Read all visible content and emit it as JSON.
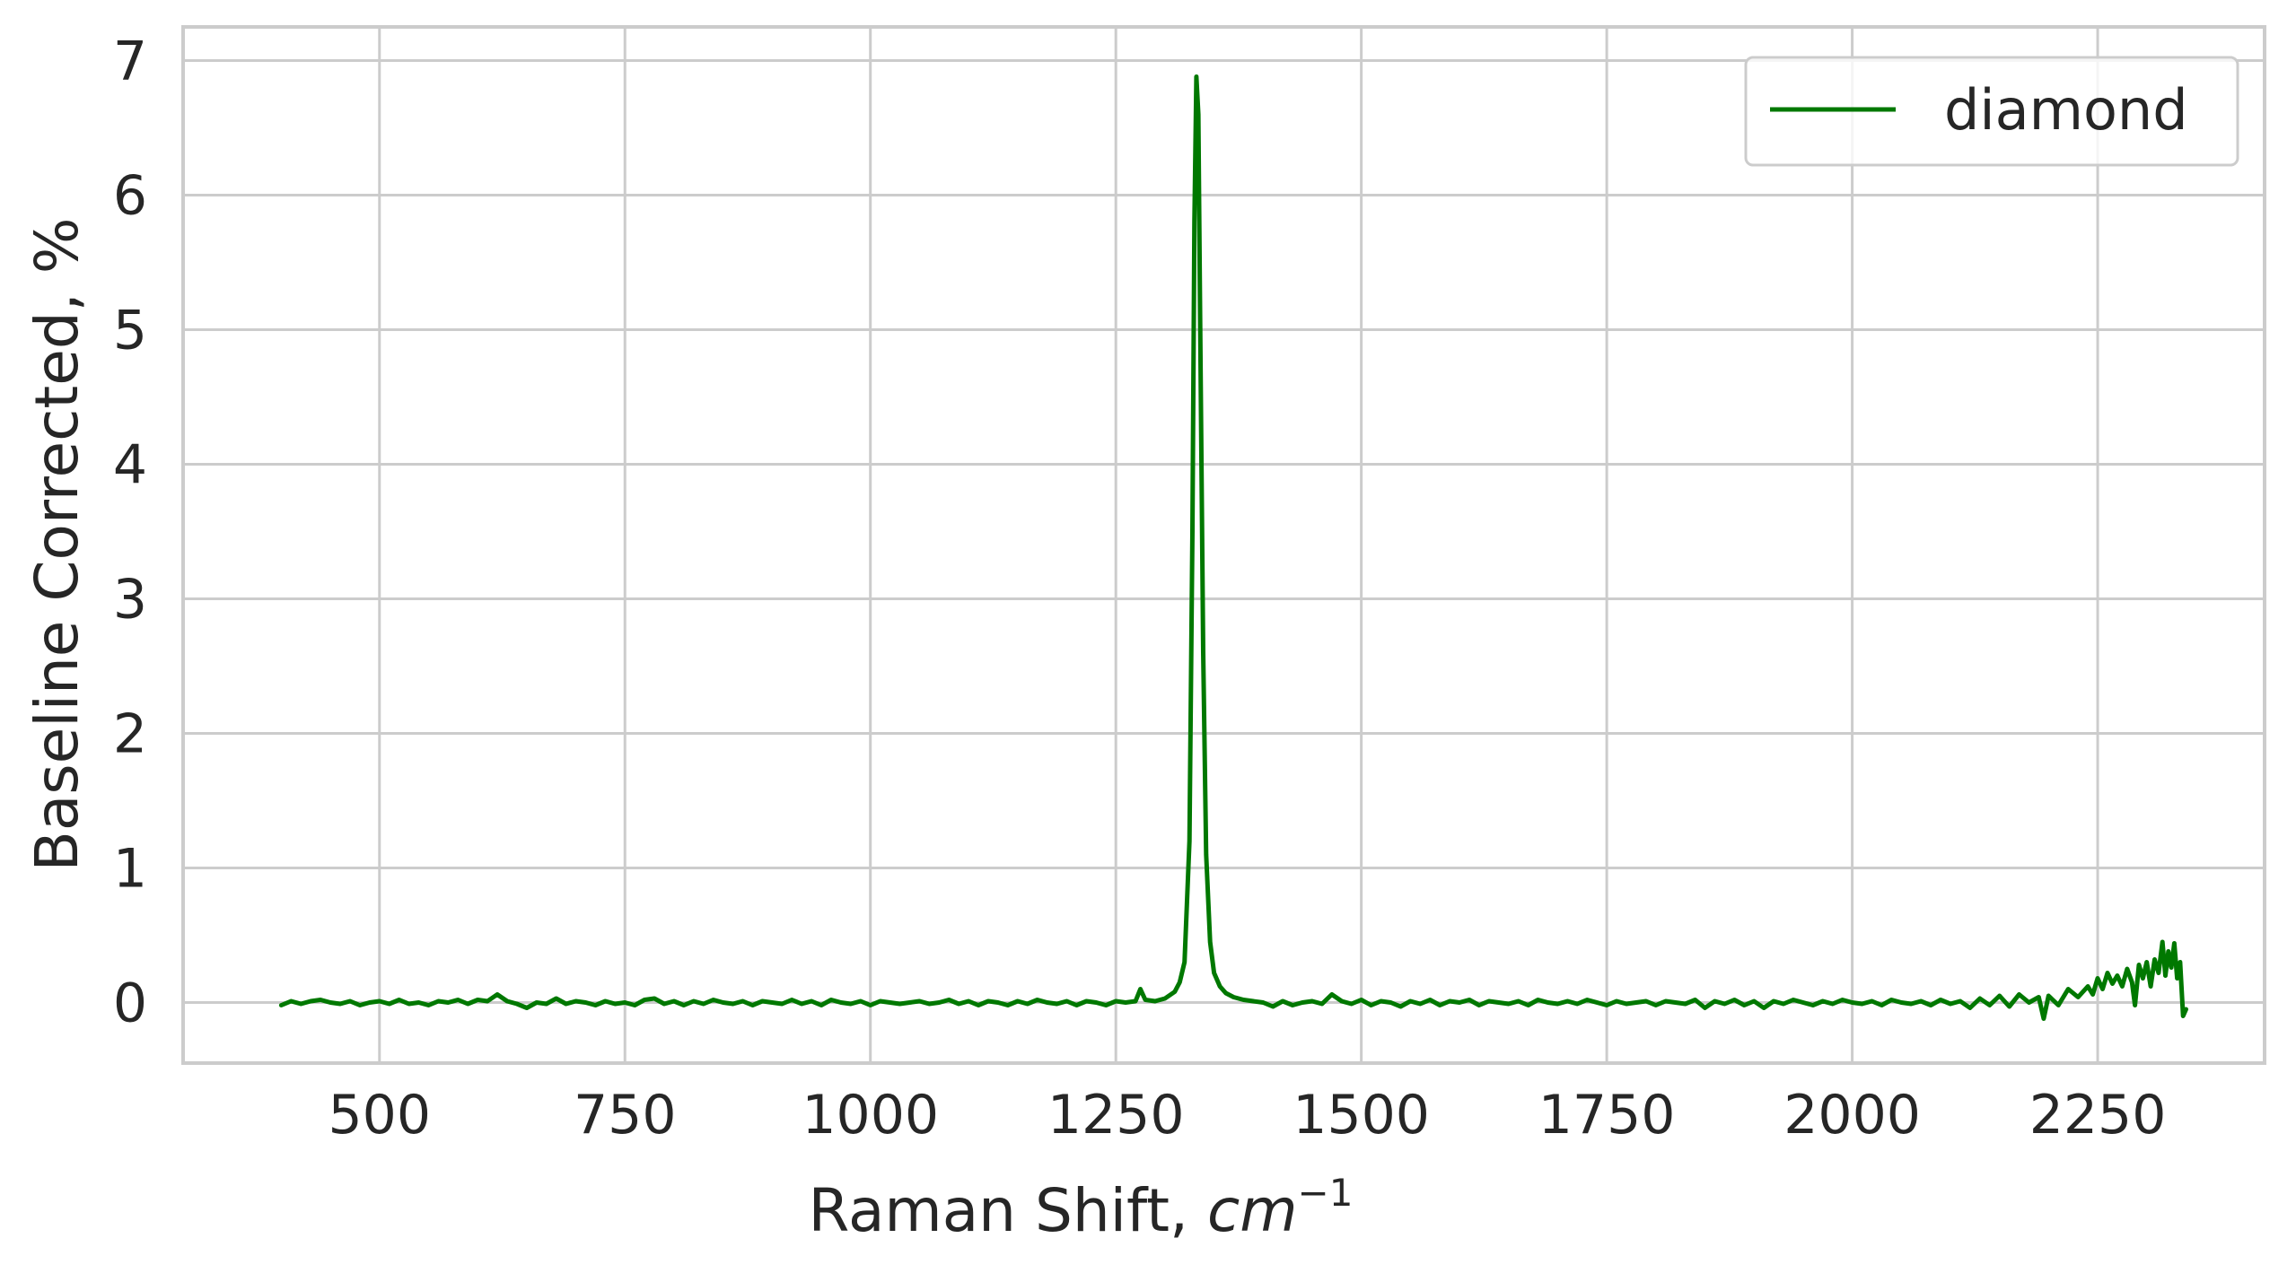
{
  "chart_data": {
    "type": "line",
    "title": "",
    "xlabel": "Raman Shift,",
    "xlabel_math": "cm",
    "xlabel_exp": "−1",
    "ylabel": "Baseline Corrected, %",
    "xlim": [
      300,
      2420
    ],
    "ylim": [
      -0.45,
      7.25
    ],
    "xticks": [
      500,
      750,
      1000,
      1250,
      1500,
      1750,
      2000,
      2250
    ],
    "xtick_labels": [
      "500",
      "750",
      "1000",
      "1250",
      "1500",
      "1750",
      "2000",
      "2250"
    ],
    "yticks": [
      0,
      1,
      2,
      3,
      4,
      5,
      6,
      7
    ],
    "ytick_labels": [
      "0",
      "1",
      "2",
      "3",
      "4",
      "5",
      "6",
      "7"
    ],
    "grid": true,
    "legend_position": "top-right",
    "series": [
      {
        "name": "diamond",
        "color": "#007800",
        "points": [
          [
            400,
            -0.02
          ],
          [
            410,
            0.01
          ],
          [
            420,
            -0.01
          ],
          [
            430,
            0.01
          ],
          [
            440,
            0.02
          ],
          [
            450,
            0.0
          ],
          [
            460,
            -0.01
          ],
          [
            470,
            0.01
          ],
          [
            480,
            -0.02
          ],
          [
            490,
            0.0
          ],
          [
            500,
            0.01
          ],
          [
            510,
            -0.01
          ],
          [
            520,
            0.02
          ],
          [
            530,
            -0.01
          ],
          [
            540,
            0.0
          ],
          [
            550,
            -0.02
          ],
          [
            560,
            0.01
          ],
          [
            570,
            0.0
          ],
          [
            580,
            0.02
          ],
          [
            590,
            -0.01
          ],
          [
            600,
            0.02
          ],
          [
            610,
            0.01
          ],
          [
            620,
            0.06
          ],
          [
            630,
            0.01
          ],
          [
            640,
            -0.01
          ],
          [
            650,
            -0.04
          ],
          [
            660,
            0.0
          ],
          [
            670,
            -0.01
          ],
          [
            680,
            0.03
          ],
          [
            690,
            -0.01
          ],
          [
            700,
            0.01
          ],
          [
            710,
            0.0
          ],
          [
            720,
            -0.02
          ],
          [
            730,
            0.01
          ],
          [
            740,
            -0.01
          ],
          [
            750,
            0.0
          ],
          [
            760,
            -0.02
          ],
          [
            770,
            0.02
          ],
          [
            780,
            0.03
          ],
          [
            790,
            -0.01
          ],
          [
            800,
            0.01
          ],
          [
            810,
            -0.02
          ],
          [
            820,
            0.01
          ],
          [
            830,
            -0.01
          ],
          [
            840,
            0.02
          ],
          [
            850,
            0.0
          ],
          [
            860,
            -0.01
          ],
          [
            870,
            0.01
          ],
          [
            880,
            -0.02
          ],
          [
            890,
            0.01
          ],
          [
            900,
            0.0
          ],
          [
            910,
            -0.01
          ],
          [
            920,
            0.02
          ],
          [
            930,
            -0.01
          ],
          [
            940,
            0.01
          ],
          [
            950,
            -0.02
          ],
          [
            960,
            0.02
          ],
          [
            970,
            0.0
          ],
          [
            980,
            -0.01
          ],
          [
            990,
            0.01
          ],
          [
            1000,
            -0.02
          ],
          [
            1010,
            0.01
          ],
          [
            1020,
            0.0
          ],
          [
            1030,
            -0.01
          ],
          [
            1040,
            0.0
          ],
          [
            1050,
            0.01
          ],
          [
            1060,
            -0.01
          ],
          [
            1070,
            0.0
          ],
          [
            1080,
            0.02
          ],
          [
            1090,
            -0.01
          ],
          [
            1100,
            0.01
          ],
          [
            1110,
            -0.02
          ],
          [
            1120,
            0.01
          ],
          [
            1130,
            0.0
          ],
          [
            1140,
            -0.02
          ],
          [
            1150,
            0.01
          ],
          [
            1160,
            -0.01
          ],
          [
            1170,
            0.02
          ],
          [
            1180,
            0.0
          ],
          [
            1190,
            -0.01
          ],
          [
            1200,
            0.01
          ],
          [
            1210,
            -0.02
          ],
          [
            1220,
            0.01
          ],
          [
            1230,
            0.0
          ],
          [
            1240,
            -0.02
          ],
          [
            1250,
            0.01
          ],
          [
            1260,
            0.0
          ],
          [
            1270,
            0.01
          ],
          [
            1275,
            0.1
          ],
          [
            1280,
            0.02
          ],
          [
            1290,
            0.01
          ],
          [
            1300,
            0.03
          ],
          [
            1310,
            0.08
          ],
          [
            1315,
            0.15
          ],
          [
            1320,
            0.3
          ],
          [
            1325,
            1.2
          ],
          [
            1328,
            3.5
          ],
          [
            1330,
            5.8
          ],
          [
            1332,
            6.88
          ],
          [
            1334,
            6.6
          ],
          [
            1336,
            5.0
          ],
          [
            1339,
            2.6
          ],
          [
            1342,
            1.1
          ],
          [
            1346,
            0.45
          ],
          [
            1350,
            0.22
          ],
          [
            1356,
            0.12
          ],
          [
            1362,
            0.07
          ],
          [
            1370,
            0.04
          ],
          [
            1380,
            0.02
          ],
          [
            1390,
            0.01
          ],
          [
            1400,
            0.0
          ],
          [
            1410,
            -0.03
          ],
          [
            1420,
            0.01
          ],
          [
            1430,
            -0.02
          ],
          [
            1440,
            0.0
          ],
          [
            1450,
            0.01
          ],
          [
            1460,
            -0.01
          ],
          [
            1470,
            0.06
          ],
          [
            1480,
            0.01
          ],
          [
            1490,
            -0.01
          ],
          [
            1500,
            0.02
          ],
          [
            1510,
            -0.02
          ],
          [
            1520,
            0.01
          ],
          [
            1530,
            0.0
          ],
          [
            1540,
            -0.03
          ],
          [
            1550,
            0.01
          ],
          [
            1560,
            -0.01
          ],
          [
            1570,
            0.02
          ],
          [
            1580,
            -0.02
          ],
          [
            1590,
            0.01
          ],
          [
            1600,
            0.0
          ],
          [
            1610,
            0.02
          ],
          [
            1620,
            -0.02
          ],
          [
            1630,
            0.01
          ],
          [
            1640,
            0.0
          ],
          [
            1650,
            -0.01
          ],
          [
            1660,
            0.01
          ],
          [
            1670,
            -0.02
          ],
          [
            1680,
            0.02
          ],
          [
            1690,
            0.0
          ],
          [
            1700,
            -0.01
          ],
          [
            1710,
            0.01
          ],
          [
            1720,
            -0.01
          ],
          [
            1730,
            0.02
          ],
          [
            1740,
            0.0
          ],
          [
            1750,
            -0.02
          ],
          [
            1760,
            0.01
          ],
          [
            1770,
            -0.01
          ],
          [
            1780,
            0.0
          ],
          [
            1790,
            0.01
          ],
          [
            1800,
            -0.02
          ],
          [
            1810,
            0.01
          ],
          [
            1820,
            0.0
          ],
          [
            1830,
            -0.01
          ],
          [
            1840,
            0.02
          ],
          [
            1850,
            -0.04
          ],
          [
            1860,
            0.01
          ],
          [
            1870,
            -0.01
          ],
          [
            1880,
            0.02
          ],
          [
            1890,
            -0.02
          ],
          [
            1900,
            0.01
          ],
          [
            1910,
            -0.04
          ],
          [
            1920,
            0.01
          ],
          [
            1930,
            -0.01
          ],
          [
            1940,
            0.02
          ],
          [
            1950,
            0.0
          ],
          [
            1960,
            -0.02
          ],
          [
            1970,
            0.01
          ],
          [
            1980,
            -0.01
          ],
          [
            1990,
            0.02
          ],
          [
            2000,
            0.0
          ],
          [
            2010,
            -0.01
          ],
          [
            2020,
            0.01
          ],
          [
            2030,
            -0.02
          ],
          [
            2040,
            0.02
          ],
          [
            2050,
            0.0
          ],
          [
            2060,
            -0.01
          ],
          [
            2070,
            0.01
          ],
          [
            2080,
            -0.02
          ],
          [
            2090,
            0.02
          ],
          [
            2100,
            -0.01
          ],
          [
            2110,
            0.01
          ],
          [
            2120,
            -0.04
          ],
          [
            2130,
            0.03
          ],
          [
            2140,
            -0.02
          ],
          [
            2150,
            0.05
          ],
          [
            2160,
            -0.03
          ],
          [
            2170,
            0.06
          ],
          [
            2180,
            0.0
          ],
          [
            2190,
            0.04
          ],
          [
            2195,
            -0.12
          ],
          [
            2200,
            0.05
          ],
          [
            2210,
            -0.02
          ],
          [
            2220,
            0.1
          ],
          [
            2230,
            0.04
          ],
          [
            2240,
            0.12
          ],
          [
            2245,
            0.06
          ],
          [
            2250,
            0.18
          ],
          [
            2255,
            0.1
          ],
          [
            2260,
            0.22
          ],
          [
            2265,
            0.14
          ],
          [
            2270,
            0.2
          ],
          [
            2275,
            0.12
          ],
          [
            2280,
            0.25
          ],
          [
            2285,
            0.15
          ],
          [
            2288,
            -0.02
          ],
          [
            2292,
            0.28
          ],
          [
            2296,
            0.18
          ],
          [
            2300,
            0.3
          ],
          [
            2304,
            0.12
          ],
          [
            2308,
            0.32
          ],
          [
            2312,
            0.22
          ],
          [
            2316,
            0.45
          ],
          [
            2319,
            0.2
          ],
          [
            2322,
            0.38
          ],
          [
            2325,
            0.26
          ],
          [
            2328,
            0.44
          ],
          [
            2331,
            0.18
          ],
          [
            2334,
            0.3
          ],
          [
            2337,
            -0.1
          ],
          [
            2340,
            -0.05
          ]
        ]
      }
    ]
  }
}
